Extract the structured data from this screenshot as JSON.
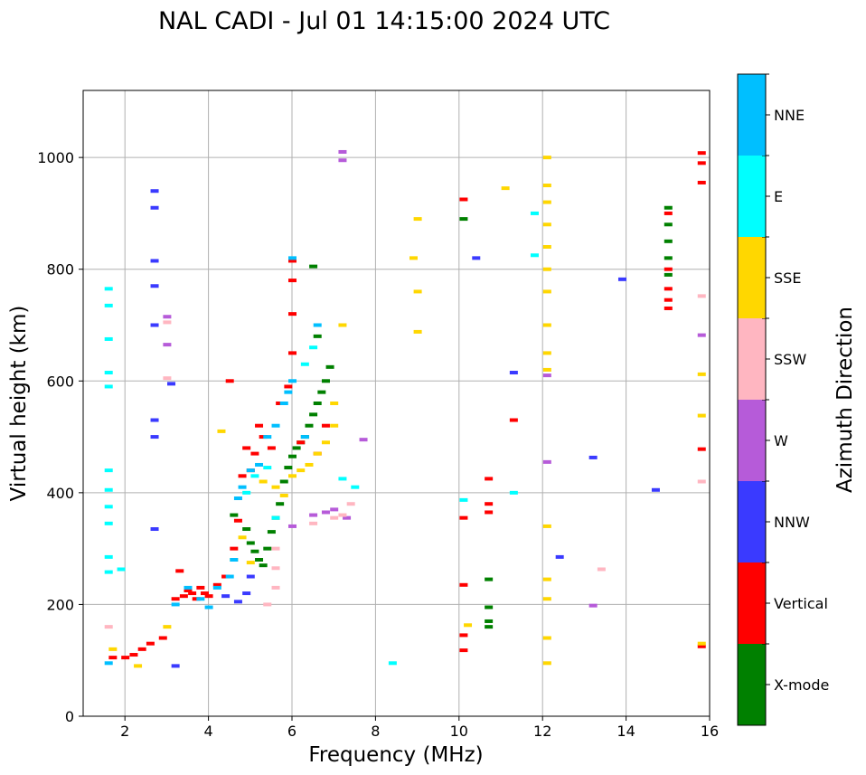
{
  "chart_data": {
    "type": "scatter",
    "title": "NAL CADI - Jul 01 14:15:00 2024 UTC",
    "xlabel": "Frequency (MHz)",
    "ylabel": "Virtual height (km)",
    "xlim": [
      1,
      16
    ],
    "ylim": [
      0,
      1120
    ],
    "xticks": [
      2,
      4,
      6,
      8,
      10,
      12,
      14,
      16
    ],
    "yticks": [
      0,
      200,
      400,
      600,
      800,
      1000
    ],
    "grid": true,
    "colorbar": {
      "label": "Azimuth Direction",
      "categories": [
        {
          "name": "X-mode",
          "color": "#008000"
        },
        {
          "name": "Vertical",
          "color": "#ff0000"
        },
        {
          "name": "NNW",
          "color": "#3a3aff"
        },
        {
          "name": "W",
          "color": "#b65bd9"
        },
        {
          "name": "SSW",
          "color": "#ffb6c1"
        },
        {
          "name": "SSE",
          "color": "#ffd700"
        },
        {
          "name": "E",
          "color": "#00ffff"
        },
        {
          "name": "NNE",
          "color": "#00bfff"
        }
      ]
    },
    "series": [
      {
        "name": "X-mode",
        "points": [
          [
            4.6,
            360
          ],
          [
            4.9,
            335
          ],
          [
            5.0,
            310
          ],
          [
            5.1,
            295
          ],
          [
            5.2,
            280
          ],
          [
            5.3,
            270
          ],
          [
            5.4,
            300
          ],
          [
            5.5,
            330
          ],
          [
            5.6,
            355
          ],
          [
            5.7,
            380
          ],
          [
            5.8,
            420
          ],
          [
            5.9,
            445
          ],
          [
            6.0,
            465
          ],
          [
            6.1,
            480
          ],
          [
            6.2,
            490
          ],
          [
            6.3,
            500
          ],
          [
            6.4,
            520
          ],
          [
            6.5,
            540
          ],
          [
            6.6,
            560
          ],
          [
            6.7,
            580
          ],
          [
            6.8,
            600
          ],
          [
            6.9,
            625
          ],
          [
            6.6,
            680
          ],
          [
            6.5,
            805
          ],
          [
            10.7,
            245
          ],
          [
            10.7,
            195
          ],
          [
            10.7,
            170
          ],
          [
            10.7,
            160
          ],
          [
            10.1,
            890
          ],
          [
            15.0,
            910
          ],
          [
            15.0,
            880
          ],
          [
            15.0,
            850
          ],
          [
            15.0,
            820
          ],
          [
            15.0,
            790
          ]
        ]
      },
      {
        "name": "Vertical",
        "points": [
          [
            1.7,
            105
          ],
          [
            2.0,
            105
          ],
          [
            2.2,
            110
          ],
          [
            2.4,
            120
          ],
          [
            2.6,
            130
          ],
          [
            2.9,
            140
          ],
          [
            3.2,
            210
          ],
          [
            3.3,
            260
          ],
          [
            3.4,
            215
          ],
          [
            3.5,
            225
          ],
          [
            3.6,
            220
          ],
          [
            3.7,
            210
          ],
          [
            3.8,
            230
          ],
          [
            3.9,
            220
          ],
          [
            4.0,
            215
          ],
          [
            4.2,
            235
          ],
          [
            4.4,
            250
          ],
          [
            4.6,
            300
          ],
          [
            4.7,
            350
          ],
          [
            4.8,
            430
          ],
          [
            4.9,
            480
          ],
          [
            5.0,
            440
          ],
          [
            5.1,
            470
          ],
          [
            5.2,
            520
          ],
          [
            5.3,
            500
          ],
          [
            5.5,
            480
          ],
          [
            5.7,
            560
          ],
          [
            5.9,
            590
          ],
          [
            6.0,
            650
          ],
          [
            6.0,
            720
          ],
          [
            6.0,
            780
          ],
          [
            6.0,
            815
          ],
          [
            6.2,
            490
          ],
          [
            6.6,
            470
          ],
          [
            6.8,
            520
          ],
          [
            4.5,
            600
          ],
          [
            10.1,
            925
          ],
          [
            10.1,
            355
          ],
          [
            10.1,
            235
          ],
          [
            10.1,
            145
          ],
          [
            10.1,
            118
          ],
          [
            10.7,
            425
          ],
          [
            10.7,
            380
          ],
          [
            10.7,
            365
          ],
          [
            11.3,
            530
          ],
          [
            15.0,
            745
          ],
          [
            15.0,
            730
          ],
          [
            15.0,
            765
          ],
          [
            15.0,
            800
          ],
          [
            15.0,
            900
          ],
          [
            15.8,
            1008
          ],
          [
            15.8,
            990
          ],
          [
            15.8,
            955
          ],
          [
            15.8,
            478
          ],
          [
            15.8,
            125
          ]
        ]
      },
      {
        "name": "NNW",
        "points": [
          [
            2.7,
            940
          ],
          [
            2.7,
            910
          ],
          [
            2.7,
            815
          ],
          [
            2.7,
            770
          ],
          [
            2.7,
            700
          ],
          [
            2.7,
            530
          ],
          [
            2.7,
            500
          ],
          [
            2.7,
            335
          ],
          [
            3.1,
            595
          ],
          [
            3.2,
            90
          ],
          [
            4.7,
            205
          ],
          [
            4.9,
            220
          ],
          [
            5.0,
            250
          ],
          [
            4.4,
            215
          ],
          [
            10.4,
            820
          ],
          [
            11.3,
            615
          ],
          [
            12.4,
            285
          ],
          [
            13.2,
            463
          ],
          [
            13.9,
            782
          ],
          [
            14.7,
            405
          ]
        ]
      },
      {
        "name": "W",
        "points": [
          [
            7.2,
            1010
          ],
          [
            7.2,
            995
          ],
          [
            3.0,
            715
          ],
          [
            3.0,
            665
          ],
          [
            6.0,
            340
          ],
          [
            6.5,
            360
          ],
          [
            6.8,
            365
          ],
          [
            7.0,
            370
          ],
          [
            7.3,
            355
          ],
          [
            7.7,
            495
          ],
          [
            12.1,
            455
          ],
          [
            12.1,
            610
          ],
          [
            13.2,
            198
          ],
          [
            15.8,
            682
          ]
        ]
      },
      {
        "name": "SSW",
        "points": [
          [
            1.6,
            160
          ],
          [
            3.0,
            705
          ],
          [
            3.0,
            605
          ],
          [
            5.6,
            300
          ],
          [
            5.6,
            265
          ],
          [
            5.6,
            230
          ],
          [
            5.4,
            200
          ],
          [
            6.5,
            345
          ],
          [
            7.0,
            355
          ],
          [
            7.2,
            360
          ],
          [
            7.4,
            380
          ],
          [
            13.4,
            263
          ],
          [
            15.8,
            752
          ],
          [
            15.8,
            420
          ]
        ]
      },
      {
        "name": "SSE",
        "points": [
          [
            1.7,
            120
          ],
          [
            2.3,
            90
          ],
          [
            3.0,
            160
          ],
          [
            4.3,
            510
          ],
          [
            4.6,
            280
          ],
          [
            4.8,
            320
          ],
          [
            5.0,
            275
          ],
          [
            5.3,
            420
          ],
          [
            5.6,
            410
          ],
          [
            5.8,
            395
          ],
          [
            6.0,
            430
          ],
          [
            6.2,
            440
          ],
          [
            6.4,
            450
          ],
          [
            6.6,
            470
          ],
          [
            6.8,
            490
          ],
          [
            7.0,
            520
          ],
          [
            7.0,
            560
          ],
          [
            7.2,
            700
          ],
          [
            8.9,
            820
          ],
          [
            9.0,
            890
          ],
          [
            9.0,
            760
          ],
          [
            9.0,
            688
          ],
          [
            10.2,
            163
          ],
          [
            11.1,
            945
          ],
          [
            12.1,
            1000
          ],
          [
            12.1,
            950
          ],
          [
            12.1,
            920
          ],
          [
            12.1,
            880
          ],
          [
            12.1,
            840
          ],
          [
            12.1,
            800
          ],
          [
            12.1,
            760
          ],
          [
            12.1,
            700
          ],
          [
            12.1,
            650
          ],
          [
            12.1,
            620
          ],
          [
            12.1,
            340
          ],
          [
            12.1,
            245
          ],
          [
            12.1,
            210
          ],
          [
            12.1,
            140
          ],
          [
            12.1,
            95
          ],
          [
            15.8,
            612
          ],
          [
            15.8,
            538
          ],
          [
            15.8,
            130
          ]
        ]
      },
      {
        "name": "E",
        "points": [
          [
            1.6,
            765
          ],
          [
            1.6,
            735
          ],
          [
            1.6,
            675
          ],
          [
            1.6,
            615
          ],
          [
            1.6,
            590
          ],
          [
            1.6,
            440
          ],
          [
            1.6,
            405
          ],
          [
            1.6,
            375
          ],
          [
            1.6,
            345
          ],
          [
            1.6,
            285
          ],
          [
            1.6,
            258
          ],
          [
            1.9,
            263
          ],
          [
            4.9,
            400
          ],
          [
            5.1,
            430
          ],
          [
            5.4,
            445
          ],
          [
            5.6,
            355
          ],
          [
            6.3,
            630
          ],
          [
            6.5,
            660
          ],
          [
            7.2,
            425
          ],
          [
            7.5,
            410
          ],
          [
            8.4,
            95
          ],
          [
            10.1,
            387
          ],
          [
            11.3,
            400
          ],
          [
            11.8,
            900
          ],
          [
            11.8,
            825
          ]
        ]
      },
      {
        "name": "NNE",
        "points": [
          [
            1.6,
            95
          ],
          [
            3.2,
            200
          ],
          [
            3.5,
            230
          ],
          [
            3.8,
            210
          ],
          [
            4.0,
            195
          ],
          [
            4.2,
            230
          ],
          [
            4.5,
            250
          ],
          [
            4.6,
            280
          ],
          [
            4.7,
            390
          ],
          [
            4.8,
            410
          ],
          [
            5.0,
            440
          ],
          [
            5.2,
            450
          ],
          [
            5.4,
            500
          ],
          [
            5.6,
            520
          ],
          [
            5.8,
            560
          ],
          [
            5.9,
            580
          ],
          [
            6.0,
            600
          ],
          [
            6.0,
            820
          ],
          [
            6.3,
            500
          ],
          [
            6.6,
            700
          ]
        ]
      }
    ]
  }
}
